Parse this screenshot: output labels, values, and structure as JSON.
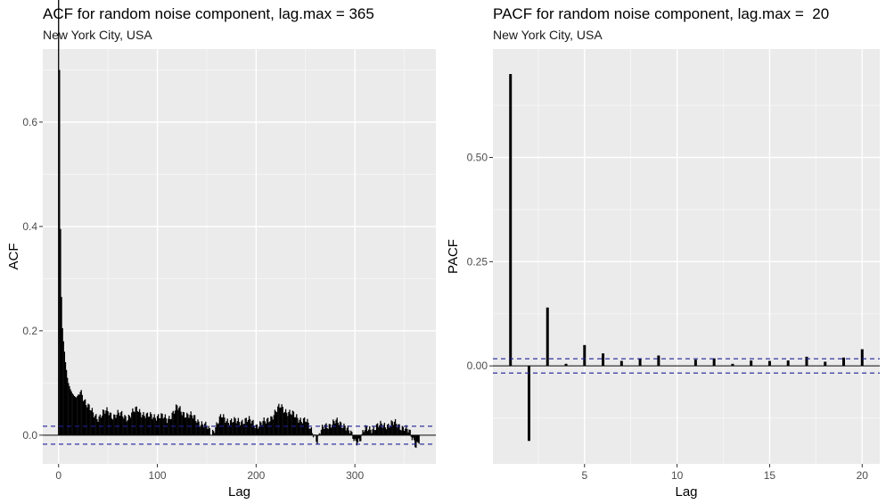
{
  "chart_data": [
    {
      "type": "bar",
      "title": "ACF for random noise component, lag.max = 365",
      "subtitle": "New York City, USA",
      "xlabel": "Lag",
      "ylabel": "ACF",
      "xlim": [
        -16,
        382
      ],
      "ylim": [
        -0.055,
        0.74
      ],
      "x_ticks": [
        0,
        100,
        200,
        300
      ],
      "y_ticks": [
        0.0,
        0.2,
        0.4,
        0.6
      ],
      "x_tick_labels": [
        "0",
        "100",
        "200",
        "300"
      ],
      "y_tick_labels": [
        "0.0",
        "0.2",
        "0.4",
        "0.6"
      ],
      "confidence_bound": 0.0172,
      "grid": true,
      "anchor_points": [
        [
          1,
          0.7
        ],
        [
          2,
          0.395
        ],
        [
          3,
          0.265
        ],
        [
          4,
          0.205
        ],
        [
          5,
          0.18
        ],
        [
          6,
          0.16
        ],
        [
          7,
          0.14
        ],
        [
          8,
          0.125
        ],
        [
          9,
          0.11
        ],
        [
          10,
          0.1
        ],
        [
          12,
          0.088
        ],
        [
          14,
          0.08
        ],
        [
          16,
          0.075
        ],
        [
          18,
          0.072
        ],
        [
          20,
          0.078
        ],
        [
          22,
          0.085
        ],
        [
          24,
          0.08
        ],
        [
          26,
          0.07
        ],
        [
          30,
          0.055
        ],
        [
          35,
          0.04
        ],
        [
          40,
          0.035
        ],
        [
          45,
          0.042
        ],
        [
          50,
          0.045
        ],
        [
          55,
          0.038
        ],
        [
          60,
          0.04
        ],
        [
          70,
          0.035
        ],
        [
          80,
          0.05
        ],
        [
          90,
          0.035
        ],
        [
          100,
          0.038
        ],
        [
          110,
          0.03
        ],
        [
          115,
          0.042
        ],
        [
          120,
          0.052
        ],
        [
          125,
          0.045
        ],
        [
          130,
          0.04
        ],
        [
          140,
          0.03
        ],
        [
          150,
          0.015
        ],
        [
          155,
          0.005
        ],
        [
          160,
          0.02
        ],
        [
          165,
          0.035
        ],
        [
          170,
          0.03
        ],
        [
          180,
          0.025
        ],
        [
          190,
          0.03
        ],
        [
          200,
          0.02
        ],
        [
          210,
          0.025
        ],
        [
          215,
          0.035
        ],
        [
          220,
          0.045
        ],
        [
          225,
          0.055
        ],
        [
          230,
          0.048
        ],
        [
          240,
          0.035
        ],
        [
          250,
          0.028
        ],
        [
          255,
          0.012
        ],
        [
          260,
          0.0
        ],
        [
          262,
          -0.012
        ],
        [
          265,
          0.005
        ],
        [
          270,
          0.018
        ],
        [
          280,
          0.025
        ],
        [
          290,
          0.02
        ],
        [
          295,
          0.005
        ],
        [
          300,
          -0.012
        ],
        [
          305,
          -0.008
        ],
        [
          310,
          0.01
        ],
        [
          320,
          0.015
        ],
        [
          330,
          0.02
        ],
        [
          340,
          0.022
        ],
        [
          350,
          0.015
        ],
        [
          355,
          0.005
        ],
        [
          358,
          -0.005
        ],
        [
          360,
          -0.01
        ],
        [
          362,
          -0.018
        ],
        [
          365,
          -0.01
        ]
      ]
    },
    {
      "type": "bar",
      "title": "PACF for random noise component, lag.max =  20",
      "subtitle": "New York City, USA",
      "xlabel": "Lag",
      "ylabel": "PACF",
      "xlim": [
        0.05,
        20.95
      ],
      "ylim": [
        -0.235,
        0.76
      ],
      "x_ticks": [
        5,
        10,
        15,
        20
      ],
      "y_ticks": [
        0.0,
        0.25,
        0.5
      ],
      "x_tick_labels": [
        "5",
        "10",
        "15",
        "20"
      ],
      "y_tick_labels": [
        "0.00",
        "0.25",
        "0.50"
      ],
      "confidence_bound": 0.0172,
      "grid": true,
      "lags": [
        1,
        2,
        3,
        4,
        5,
        6,
        7,
        8,
        9,
        10,
        11,
        12,
        13,
        14,
        15,
        16,
        17,
        18,
        19,
        20
      ],
      "values": [
        0.7,
        -0.18,
        0.14,
        0.005,
        0.05,
        0.03,
        0.012,
        0.018,
        0.025,
        0.0,
        0.015,
        0.018,
        0.005,
        0.013,
        0.012,
        0.013,
        0.022,
        0.01,
        0.02,
        0.04
      ]
    }
  ]
}
